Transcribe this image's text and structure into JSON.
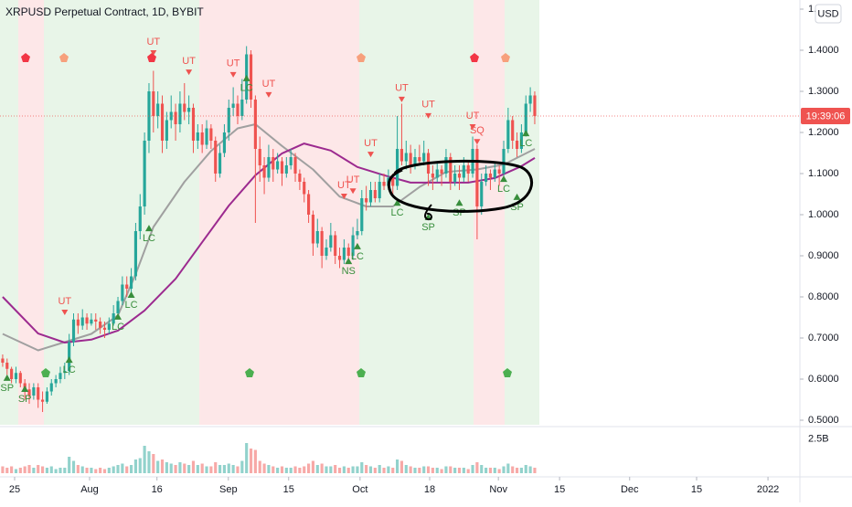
{
  "chart_data": {
    "type": "candlestick",
    "title": "XRPUSD Perpetual Contract, 1D, BYBIT",
    "currency": "USD",
    "up_color": "#26a69a",
    "down_color": "#ef5350",
    "xlim": [
      -0.6,
      179.8
    ],
    "ylim": [
      0.4889,
      1.5222
    ],
    "yticks": [
      {
        "value": 0.5,
        "label": "0.5000"
      },
      {
        "value": 0.6,
        "label": "0.6000"
      },
      {
        "value": 0.7,
        "label": "0.7000"
      },
      {
        "value": 0.8,
        "label": "0.8000"
      },
      {
        "value": 0.9,
        "label": "0.9000"
      },
      {
        "value": 1.0,
        "label": "1.0000"
      },
      {
        "value": 1.1,
        "label": "1.1000"
      },
      {
        "value": 1.2,
        "label": "1.2000"
      },
      {
        "value": 1.3,
        "label": "1.3000"
      },
      {
        "value": 1.4,
        "label": "1.4000"
      },
      {
        "value": 1.5,
        "label": "1.5000"
      }
    ],
    "xticks": [
      {
        "value": 2.7,
        "label": "25"
      },
      {
        "value": 19.6,
        "label": "Aug"
      },
      {
        "value": 34.8,
        "label": "16"
      },
      {
        "value": 50.9,
        "label": "Sep"
      },
      {
        "value": 64.5,
        "label": "15"
      },
      {
        "value": 80.6,
        "label": "Oct"
      },
      {
        "value": 96.3,
        "label": "18"
      },
      {
        "value": 111.8,
        "label": "Nov"
      },
      {
        "value": 125.6,
        "label": "15"
      },
      {
        "value": 141.4,
        "label": "Dec"
      },
      {
        "value": 156.5,
        "label": "15"
      },
      {
        "value": 172.6,
        "label": "2022"
      }
    ],
    "candles": [
      [
        0.65,
        0.66,
        0.63,
        0.64
      ],
      [
        0.64,
        0.65,
        0.61,
        0.625
      ],
      [
        0.625,
        0.63,
        0.59,
        0.6
      ],
      [
        0.6,
        0.63,
        0.59,
        0.615
      ],
      [
        0.615,
        0.62,
        0.58,
        0.59
      ],
      [
        0.59,
        0.6,
        0.55,
        0.575
      ],
      [
        0.575,
        0.59,
        0.54,
        0.56
      ],
      [
        0.56,
        0.59,
        0.55,
        0.58
      ],
      [
        0.58,
        0.59,
        0.53,
        0.55
      ],
      [
        0.55,
        0.57,
        0.52,
        0.545
      ],
      [
        0.545,
        0.58,
        0.54,
        0.57
      ],
      [
        0.57,
        0.6,
        0.56,
        0.59
      ],
      [
        0.59,
        0.61,
        0.58,
        0.6
      ],
      [
        0.6,
        0.63,
        0.59,
        0.615
      ],
      [
        0.615,
        0.64,
        0.6,
        0.62
      ],
      [
        0.62,
        0.71,
        0.61,
        0.69
      ],
      [
        0.69,
        0.76,
        0.68,
        0.745
      ],
      [
        0.745,
        0.76,
        0.71,
        0.73
      ],
      [
        0.73,
        0.77,
        0.72,
        0.75
      ],
      [
        0.75,
        0.76,
        0.72,
        0.735
      ],
      [
        0.735,
        0.76,
        0.73,
        0.745
      ],
      [
        0.745,
        0.76,
        0.72,
        0.74
      ],
      [
        0.74,
        0.75,
        0.71,
        0.725
      ],
      [
        0.725,
        0.74,
        0.7,
        0.72
      ],
      [
        0.72,
        0.75,
        0.71,
        0.735
      ],
      [
        0.735,
        0.78,
        0.73,
        0.76
      ],
      [
        0.76,
        0.8,
        0.75,
        0.79
      ],
      [
        0.79,
        0.85,
        0.78,
        0.83
      ],
      [
        0.83,
        0.85,
        0.8,
        0.82
      ],
      [
        0.82,
        0.87,
        0.81,
        0.85
      ],
      [
        0.85,
        0.98,
        0.84,
        0.96
      ],
      [
        0.96,
        1.05,
        0.94,
        1.02
      ],
      [
        1.02,
        1.2,
        1.0,
        1.18
      ],
      [
        1.18,
        1.32,
        1.15,
        1.3
      ],
      [
        1.3,
        1.35,
        1.2,
        1.24
      ],
      [
        1.24,
        1.3,
        1.21,
        1.27
      ],
      [
        1.27,
        1.29,
        1.15,
        1.18
      ],
      [
        1.18,
        1.25,
        1.16,
        1.23
      ],
      [
        1.23,
        1.29,
        1.21,
        1.25
      ],
      [
        1.25,
        1.27,
        1.18,
        1.22
      ],
      [
        1.22,
        1.3,
        1.2,
        1.27
      ],
      [
        1.27,
        1.32,
        1.23,
        1.25
      ],
      [
        1.25,
        1.29,
        1.22,
        1.26
      ],
      [
        1.26,
        1.27,
        1.15,
        1.18
      ],
      [
        1.18,
        1.22,
        1.16,
        1.2
      ],
      [
        1.2,
        1.22,
        1.15,
        1.17
      ],
      [
        1.17,
        1.23,
        1.16,
        1.21
      ],
      [
        1.21,
        1.22,
        1.16,
        1.18
      ],
      [
        1.18,
        1.19,
        1.08,
        1.1
      ],
      [
        1.1,
        1.17,
        1.09,
        1.15
      ],
      [
        1.15,
        1.22,
        1.14,
        1.2
      ],
      [
        1.2,
        1.28,
        1.18,
        1.26
      ],
      [
        1.26,
        1.31,
        1.24,
        1.27
      ],
      [
        1.27,
        1.29,
        1.22,
        1.24
      ],
      [
        1.24,
        1.33,
        1.23,
        1.28
      ],
      [
        1.28,
        1.41,
        1.27,
        1.39
      ],
      [
        1.39,
        1.4,
        1.26,
        1.28
      ],
      [
        1.28,
        1.29,
        0.98,
        1.16
      ],
      [
        1.16,
        1.19,
        1.08,
        1.12
      ],
      [
        1.12,
        1.14,
        1.05,
        1.09
      ],
      [
        1.09,
        1.17,
        1.08,
        1.14
      ],
      [
        1.14,
        1.16,
        1.08,
        1.11
      ],
      [
        1.11,
        1.15,
        1.1,
        1.13
      ],
      [
        1.13,
        1.14,
        1.07,
        1.1
      ],
      [
        1.1,
        1.14,
        1.09,
        1.12
      ],
      [
        1.12,
        1.16,
        1.11,
        1.14
      ],
      [
        1.14,
        1.15,
        1.08,
        1.1
      ],
      [
        1.1,
        1.11,
        1.06,
        1.08
      ],
      [
        1.08,
        1.09,
        1.03,
        1.05
      ],
      [
        1.05,
        1.06,
        0.98,
        1.0
      ],
      [
        1.0,
        1.01,
        0.9,
        0.93
      ],
      [
        0.93,
        0.99,
        0.92,
        0.96
      ],
      [
        0.96,
        0.97,
        0.87,
        0.9
      ],
      [
        0.9,
        0.94,
        0.89,
        0.92
      ],
      [
        0.92,
        0.98,
        0.91,
        0.95
      ],
      [
        0.95,
        0.96,
        0.88,
        0.9
      ],
      [
        0.9,
        0.92,
        0.87,
        0.89
      ],
      [
        0.89,
        0.94,
        0.88,
        0.92
      ],
      [
        0.92,
        0.93,
        0.88,
        0.9
      ],
      [
        0.9,
        0.97,
        0.89,
        0.95
      ],
      [
        0.95,
        0.99,
        0.94,
        0.96
      ],
      [
        0.96,
        1.06,
        0.95,
        1.04
      ],
      [
        1.04,
        1.07,
        1.01,
        1.03
      ],
      [
        1.03,
        1.08,
        1.02,
        1.06
      ],
      [
        1.06,
        1.08,
        1.03,
        1.04
      ],
      [
        1.04,
        1.1,
        1.03,
        1.08
      ],
      [
        1.08,
        1.1,
        1.06,
        1.07
      ],
      [
        1.07,
        1.11,
        1.06,
        1.09
      ],
      [
        1.09,
        1.1,
        1.05,
        1.07
      ],
      [
        1.07,
        1.24,
        1.06,
        1.16
      ],
      [
        1.16,
        1.27,
        1.12,
        1.13
      ],
      [
        1.13,
        1.18,
        1.11,
        1.15
      ],
      [
        1.15,
        1.17,
        1.1,
        1.12
      ],
      [
        1.12,
        1.16,
        1.11,
        1.14
      ],
      [
        1.14,
        1.17,
        1.12,
        1.13
      ],
      [
        1.13,
        1.18,
        1.12,
        1.15
      ],
      [
        1.15,
        1.16,
        1.07,
        1.1
      ],
      [
        1.1,
        1.12,
        1.06,
        1.09
      ],
      [
        1.09,
        1.13,
        1.08,
        1.11
      ],
      [
        1.11,
        1.12,
        1.07,
        1.1
      ],
      [
        1.1,
        1.16,
        1.09,
        1.14
      ],
      [
        1.14,
        1.15,
        1.06,
        1.08
      ],
      [
        1.08,
        1.12,
        1.07,
        1.1
      ],
      [
        1.1,
        1.12,
        1.06,
        1.09
      ],
      [
        1.09,
        1.14,
        1.08,
        1.12
      ],
      [
        1.12,
        1.13,
        1.08,
        1.1
      ],
      [
        1.1,
        1.19,
        1.09,
        1.16
      ],
      [
        1.16,
        1.17,
        0.94,
        1.02
      ],
      [
        1.02,
        1.1,
        1.0,
        1.08
      ],
      [
        1.08,
        1.12,
        1.07,
        1.1
      ],
      [
        1.1,
        1.11,
        1.06,
        1.09
      ],
      [
        1.09,
        1.13,
        1.08,
        1.11
      ],
      [
        1.11,
        1.12,
        1.07,
        1.1
      ],
      [
        1.1,
        1.18,
        1.09,
        1.16
      ],
      [
        1.16,
        1.26,
        1.15,
        1.23
      ],
      [
        1.23,
        1.24,
        1.16,
        1.18
      ],
      [
        1.18,
        1.2,
        1.14,
        1.16
      ],
      [
        1.16,
        1.22,
        1.15,
        1.2
      ],
      [
        1.2,
        1.29,
        1.19,
        1.27
      ],
      [
        1.27,
        1.31,
        1.25,
        1.29
      ],
      [
        1.29,
        1.3,
        1.22,
        1.24
      ]
    ],
    "lines": [
      {
        "color": "#a0a0a0",
        "x": [
          0,
          8,
          14,
          20,
          26,
          30,
          34,
          41,
          47,
          53,
          57,
          63,
          70,
          76,
          82,
          88,
          94,
          100,
          107,
          113,
          120
        ],
        "values": [
          0.71,
          0.67,
          0.69,
          0.71,
          0.755,
          0.855,
          0.97,
          1.08,
          1.155,
          1.21,
          1.22,
          1.167,
          1.11,
          1.044,
          1.02,
          1.02,
          1.067,
          1.104,
          1.11,
          1.122,
          1.16
        ]
      },
      {
        "color": "#9c2a8f",
        "x": [
          0,
          8,
          14,
          20,
          26,
          32,
          39,
          45,
          51,
          57,
          63,
          68,
          74,
          80,
          86,
          92,
          98,
          105,
          111,
          117,
          120
        ],
        "values": [
          0.8,
          0.711,
          0.689,
          0.696,
          0.718,
          0.767,
          0.844,
          0.933,
          1.022,
          1.096,
          1.149,
          1.173,
          1.156,
          1.116,
          1.096,
          1.078,
          1.078,
          1.078,
          1.089,
          1.118,
          1.138
        ]
      }
    ],
    "last_price": 1.24,
    "countdown": "19:39:06",
    "annotations": [
      {
        "text": "UT",
        "x": 14,
        "y": 0.789,
        "color": "#ef5350",
        "marker": "down"
      },
      {
        "text": "UT",
        "x": 34,
        "y": 1.42,
        "color": "#ef5350",
        "marker": "down"
      },
      {
        "text": "UT",
        "x": 42,
        "y": 1.373,
        "color": "#ef5350",
        "marker": "down"
      },
      {
        "text": "UT",
        "x": 52,
        "y": 1.367,
        "color": "#ef5350",
        "marker": "down"
      },
      {
        "text": "UT",
        "x": 60,
        "y": 1.318,
        "color": "#ef5350",
        "marker": "down"
      },
      {
        "text": "UT",
        "x": 77,
        "y": 1.071,
        "color": "#ef5350",
        "marker": "down"
      },
      {
        "text": "UT",
        "x": 79,
        "y": 1.084,
        "color": "#ef5350",
        "marker": "down"
      },
      {
        "text": "UT",
        "x": 83,
        "y": 1.173,
        "color": "#ef5350",
        "marker": "down"
      },
      {
        "text": "UT",
        "x": 90,
        "y": 1.307,
        "color": "#ef5350",
        "marker": "down"
      },
      {
        "text": "UT",
        "x": 96,
        "y": 1.267,
        "color": "#ef5350",
        "marker": "down"
      },
      {
        "text": "UT",
        "x": 106,
        "y": 1.24,
        "color": "#ef5350",
        "marker": "down"
      },
      {
        "text": "SQ",
        "x": 107,
        "y": 1.204,
        "color": "#ef5350",
        "marker": "down"
      },
      {
        "text": "SP",
        "x": 1,
        "y": 0.578,
        "color": "#388e3c",
        "marker": "up"
      },
      {
        "text": "SP",
        "x": 5,
        "y": 0.551,
        "color": "#388e3c",
        "marker": "up"
      },
      {
        "text": "LC",
        "x": 15,
        "y": 0.622,
        "color": "#388e3c",
        "marker": "up"
      },
      {
        "text": "LC",
        "x": 26,
        "y": 0.727,
        "color": "#388e3c",
        "marker": "up"
      },
      {
        "text": "LC",
        "x": 29,
        "y": 0.78,
        "color": "#388e3c",
        "marker": "up"
      },
      {
        "text": "LC",
        "x": 33,
        "y": 0.942,
        "color": "#388e3c",
        "marker": "up"
      },
      {
        "text": "LC",
        "x": 55,
        "y": 1.307,
        "color": "#388e3c",
        "marker": "up"
      },
      {
        "text": "NS",
        "x": 78,
        "y": 0.862,
        "color": "#388e3c",
        "marker": "up"
      },
      {
        "text": "LC",
        "x": 80,
        "y": 0.898,
        "color": "#388e3c",
        "marker": "up"
      },
      {
        "text": "LC",
        "x": 89,
        "y": 1.004,
        "color": "#388e3c",
        "marker": "up"
      },
      {
        "text": "SP",
        "x": 96,
        "y": 0.969,
        "color": "#388e3c",
        "marker": "up"
      },
      {
        "text": "SP",
        "x": 103,
        "y": 1.004,
        "color": "#388e3c",
        "marker": "up"
      },
      {
        "text": "LC",
        "x": 113,
        "y": 1.062,
        "color": "#388e3c",
        "marker": "up"
      },
      {
        "text": "SP",
        "x": 116,
        "y": 1.018,
        "color": "#388e3c",
        "marker": "up"
      },
      {
        "text": "LC",
        "x": 118,
        "y": 1.173,
        "color": "#388e3c",
        "marker": "up"
      }
    ],
    "volume": {
      "ylim": [
        0,
        3.2
      ],
      "yticks": [
        {
          "value": 2.5,
          "label": "2.5B"
        }
      ],
      "values": [
        0.5,
        0.4,
        0.5,
        0.3,
        0.4,
        0.5,
        0.6,
        0.4,
        0.6,
        0.5,
        0.4,
        0.5,
        0.3,
        0.4,
        0.4,
        1.2,
        0.9,
        0.6,
        0.5,
        0.4,
        0.4,
        0.3,
        0.4,
        0.3,
        0.4,
        0.5,
        0.6,
        0.7,
        0.5,
        0.6,
        1.0,
        1.1,
        2.0,
        1.6,
        1.4,
        0.9,
        1.0,
        0.8,
        0.7,
        0.6,
        0.8,
        0.7,
        0.6,
        0.9,
        0.6,
        0.7,
        0.5,
        0.5,
        0.8,
        0.6,
        0.6,
        0.7,
        0.6,
        0.5,
        0.9,
        2.2,
        1.8,
        1.7,
        0.9,
        0.7,
        0.6,
        0.5,
        0.4,
        0.5,
        0.4,
        0.4,
        0.5,
        0.4,
        0.5,
        0.7,
        0.9,
        0.6,
        0.7,
        0.5,
        0.5,
        0.6,
        0.4,
        0.5,
        0.4,
        0.5,
        0.5,
        0.8,
        0.6,
        0.5,
        0.4,
        0.6,
        0.4,
        0.5,
        0.4,
        1.0,
        0.9,
        0.6,
        0.5,
        0.4,
        0.4,
        0.5,
        0.5,
        0.4,
        0.4,
        0.3,
        0.5,
        0.5,
        0.4,
        0.4,
        0.4,
        0.3,
        0.6,
        0.8,
        0.6,
        0.4,
        0.4,
        0.4,
        0.3,
        0.5,
        0.7,
        0.5,
        0.4,
        0.4,
        0.6,
        0.5,
        0.4
      ]
    }
  }
}
